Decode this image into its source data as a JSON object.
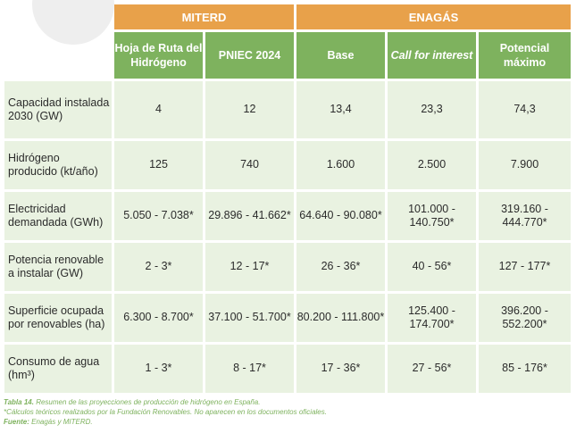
{
  "table": {
    "groups": [
      {
        "label": "MITERD"
      },
      {
        "label": "ENAGÁS"
      }
    ],
    "subheaders": [
      {
        "label": "Hoja de Ruta del Hidrógeno"
      },
      {
        "label": "PNIEC 2024"
      },
      {
        "label": "Base"
      },
      {
        "label": "Call for interest"
      },
      {
        "label": "Potencial máximo"
      }
    ],
    "rows": [
      {
        "label": "Capacidad instalada 2030 (GW)",
        "values": [
          "4",
          "12",
          "13,4",
          "23,3",
          "74,3"
        ]
      },
      {
        "label": "Hidrógeno producido (kt/año)",
        "values": [
          "125",
          "740",
          "1.600",
          "2.500",
          "7.900"
        ]
      },
      {
        "label": "Electricidad demandada (GWh)",
        "values": [
          "5.050 - 7.038*",
          "29.896 - 41.662*",
          "64.640 - 90.080*",
          "101.000 - 140.750*",
          "319.160 - 444.770*"
        ]
      },
      {
        "label": "Potencia renovable a instalar (GW)",
        "values": [
          "2 - 3*",
          "12 - 17*",
          "26 - 36*",
          "40 - 56*",
          "127 - 177*"
        ]
      },
      {
        "label": "Superficie ocupada por renovables (ha)",
        "values": [
          "6.300 - 8.700*",
          "37.100 - 51.700*",
          "80.200 - 111.800*",
          "125.400 - 174.700*",
          "396.200 - 552.200*"
        ]
      },
      {
        "label": "Consumo de agua (hm³)",
        "values": [
          "1 - 3*",
          "8 - 17*",
          "17 - 36*",
          "27 - 56*",
          "85 - 176*"
        ]
      }
    ]
  },
  "caption": {
    "table_label": "Tabla 14.",
    "table_text": "Resumen de las proyecciones de producción de hidrógeno en España.",
    "note": "*Cálculos teóricos realizados por la Fundación Renovables. No aparecen en los documentos oficiales.",
    "source_label": "Fuente:",
    "source_text": "Enagás y MITERD."
  }
}
